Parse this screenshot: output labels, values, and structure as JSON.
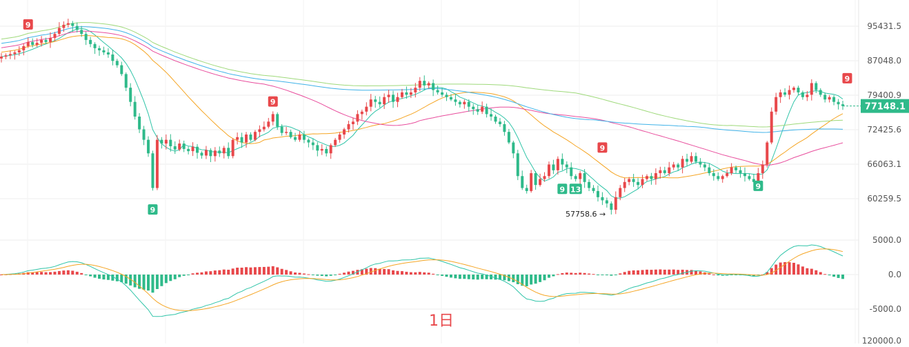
{
  "chart_data": [
    {
      "type": "candlestick",
      "title": "",
      "period_label": "1日",
      "price_axis_ticks": [
        "95431.5",
        "87048.0",
        "79400.9",
        "72425.6",
        "66063.1",
        "60259.5"
      ],
      "current_price": "77148.1",
      "annotations": {
        "low_label": "57758.6 →",
        "td_markers": [
          {
            "text": "9",
            "color": "red",
            "x_index": 6,
            "price": 95800
          },
          {
            "text": "9",
            "color": "red",
            "x_index": 61,
            "price": 78000
          },
          {
            "text": "9",
            "color": "red",
            "x_index": 135,
            "price": 69000
          },
          {
            "text": "9",
            "color": "red",
            "x_index": 190,
            "price": 83000
          },
          {
            "text": "9",
            "color": "green",
            "x_index": 34,
            "price": 58500
          },
          {
            "text": "9",
            "color": "green",
            "x_index": 126,
            "price": 61800
          },
          {
            "text": "13",
            "color": "green",
            "x_index": 129,
            "price": 61800
          },
          {
            "text": "9",
            "color": "green",
            "x_index": 170,
            "price": 62300
          }
        ]
      },
      "close_series": [
        88000,
        88300,
        88600,
        89000,
        89500,
        90500,
        91500,
        90800,
        91300,
        92000,
        91500,
        92500,
        93500,
        95000,
        95800,
        96200,
        95500,
        94500,
        93500,
        92000,
        91000,
        90000,
        89500,
        89000,
        88500,
        87000,
        86000,
        84000,
        81000,
        78000,
        75000,
        72500,
        70500,
        68000,
        62000,
        70500,
        69800,
        70500,
        69300,
        68700,
        69800,
        68800,
        68400,
        69200,
        68100,
        67600,
        68600,
        67500,
        68500,
        68000,
        69000,
        67500,
        70500,
        71000,
        70000,
        71500,
        70500,
        72000,
        72500,
        73000,
        74000,
        75500,
        73000,
        71800,
        72000,
        71000,
        70500,
        71500,
        70500,
        70000,
        69500,
        68500,
        68800,
        68000,
        69500,
        70500,
        71500,
        72500,
        73500,
        74000,
        75500,
        76000,
        77000,
        78500,
        78000,
        77500,
        79000,
        79500,
        78000,
        79000,
        80000,
        79500,
        80000,
        81000,
        82500,
        81500,
        82000,
        80500,
        80000,
        79500,
        79000,
        78500,
        78000,
        77500,
        78000,
        77000,
        76500,
        76000,
        77000,
        75500,
        75000,
        74000,
        73500,
        72000,
        70000,
        68000,
        64000,
        62000,
        61500,
        64500,
        62500,
        63500,
        64000,
        66000,
        65000,
        67000,
        66000,
        65500,
        64000,
        63500,
        64500,
        63000,
        62000,
        61500,
        60500,
        60000,
        59500,
        58500,
        60500,
        62000,
        63000,
        63500,
        63000,
        62500,
        63500,
        64000,
        63500,
        64500,
        65000,
        64500,
        65500,
        66000,
        65500,
        67000,
        66500,
        67500,
        66500,
        66000,
        65500,
        64500,
        64000,
        63500,
        64000,
        64500,
        65500,
        65000,
        64500,
        64000,
        63500,
        63000,
        64500,
        66000,
        70000,
        76000,
        79000,
        80000,
        79500,
        80500,
        81000,
        80000,
        79000,
        79500,
        82000,
        80500,
        79500,
        78500,
        79000,
        78000,
        77500,
        77148.1
      ],
      "macd": {
        "axis_ticks": [
          "5000.0",
          "0.0",
          "-5000.0",
          "120000.0"
        ],
        "series": [
          {
            "name": "",
            "color": "#2fc4a8"
          },
          {
            "name": "",
            "color": "#f5a524"
          }
        ]
      },
      "moving_averages": [
        {
          "name": "",
          "color": "#2fc4a8",
          "period": 7
        },
        {
          "name": "",
          "color": "#f5a524",
          "period": 25
        },
        {
          "name": "",
          "color": "#e84c9c",
          "period": 60
        },
        {
          "name": "",
          "color": "#3fb2e8",
          "period": 99
        },
        {
          "name": "",
          "color": "#9ed97a",
          "period": 130
        }
      ],
      "colors": {
        "up": "#e8484b",
        "down": "#2fba8a",
        "current_price_badge": "#2fba8a"
      }
    }
  ]
}
